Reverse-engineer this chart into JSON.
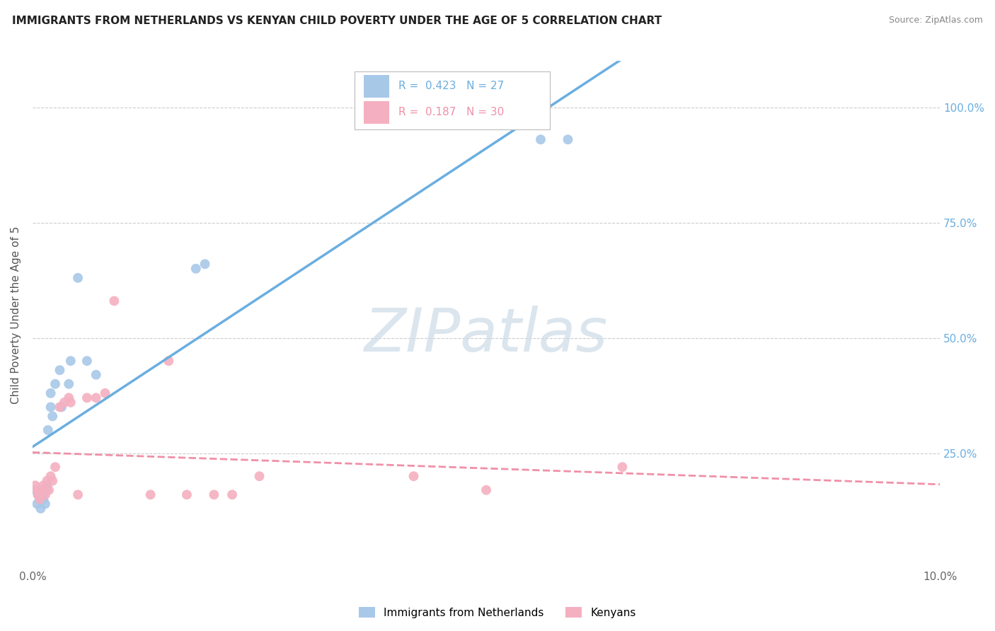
{
  "title": "IMMIGRANTS FROM NETHERLANDS VS KENYAN CHILD POVERTY UNDER THE AGE OF 5 CORRELATION CHART",
  "source": "Source: ZipAtlas.com",
  "ylabel": "Child Poverty Under the Age of 5",
  "legend_label1": "Immigrants from Netherlands",
  "legend_label2": "Kenyans",
  "R1": 0.423,
  "N1": 27,
  "R2": 0.187,
  "N2": 30,
  "color_blue": "#a8c8e8",
  "color_pink": "#f4b0c0",
  "color_blue_line": "#6aaee0",
  "color_pink_line": "#f090a8",
  "watermark": "ZIPatlas",
  "nl_x": [
    0.0003,
    0.0005,
    0.0006,
    0.0008,
    0.0009,
    0.001,
    0.001,
    0.0012,
    0.0014,
    0.0015,
    0.0016,
    0.0017,
    0.002,
    0.002,
    0.0022,
    0.0025,
    0.003,
    0.0032,
    0.004,
    0.0042,
    0.005,
    0.006,
    0.007,
    0.018,
    0.019,
    0.056,
    0.059
  ],
  "nl_y": [
    0.17,
    0.14,
    0.16,
    0.15,
    0.13,
    0.16,
    0.17,
    0.15,
    0.14,
    0.17,
    0.18,
    0.3,
    0.38,
    0.35,
    0.33,
    0.4,
    0.43,
    0.35,
    0.4,
    0.45,
    0.63,
    0.45,
    0.42,
    0.65,
    0.66,
    0.93,
    0.93
  ],
  "kn_x": [
    0.0003,
    0.0005,
    0.0006,
    0.0008,
    0.001,
    0.0012,
    0.0014,
    0.0016,
    0.0018,
    0.002,
    0.0022,
    0.0025,
    0.003,
    0.0035,
    0.004,
    0.0042,
    0.005,
    0.006,
    0.007,
    0.008,
    0.009,
    0.013,
    0.015,
    0.017,
    0.02,
    0.022,
    0.025,
    0.042,
    0.05,
    0.065
  ],
  "kn_y": [
    0.18,
    0.17,
    0.16,
    0.15,
    0.17,
    0.18,
    0.16,
    0.19,
    0.17,
    0.2,
    0.19,
    0.22,
    0.35,
    0.36,
    0.37,
    0.36,
    0.16,
    0.37,
    0.37,
    0.38,
    0.58,
    0.16,
    0.45,
    0.16,
    0.16,
    0.16,
    0.2,
    0.2,
    0.17,
    0.22
  ],
  "xlim": [
    0,
    0.1
  ],
  "ylim": [
    0,
    1.1
  ],
  "yticks": [
    0.25,
    0.5,
    0.75,
    1.0
  ],
  "ytick_labels": [
    "25.0%",
    "50.0%",
    "75.0%",
    "100.0%"
  ],
  "xtick_labels": [
    "0.0%",
    "10.0%"
  ]
}
